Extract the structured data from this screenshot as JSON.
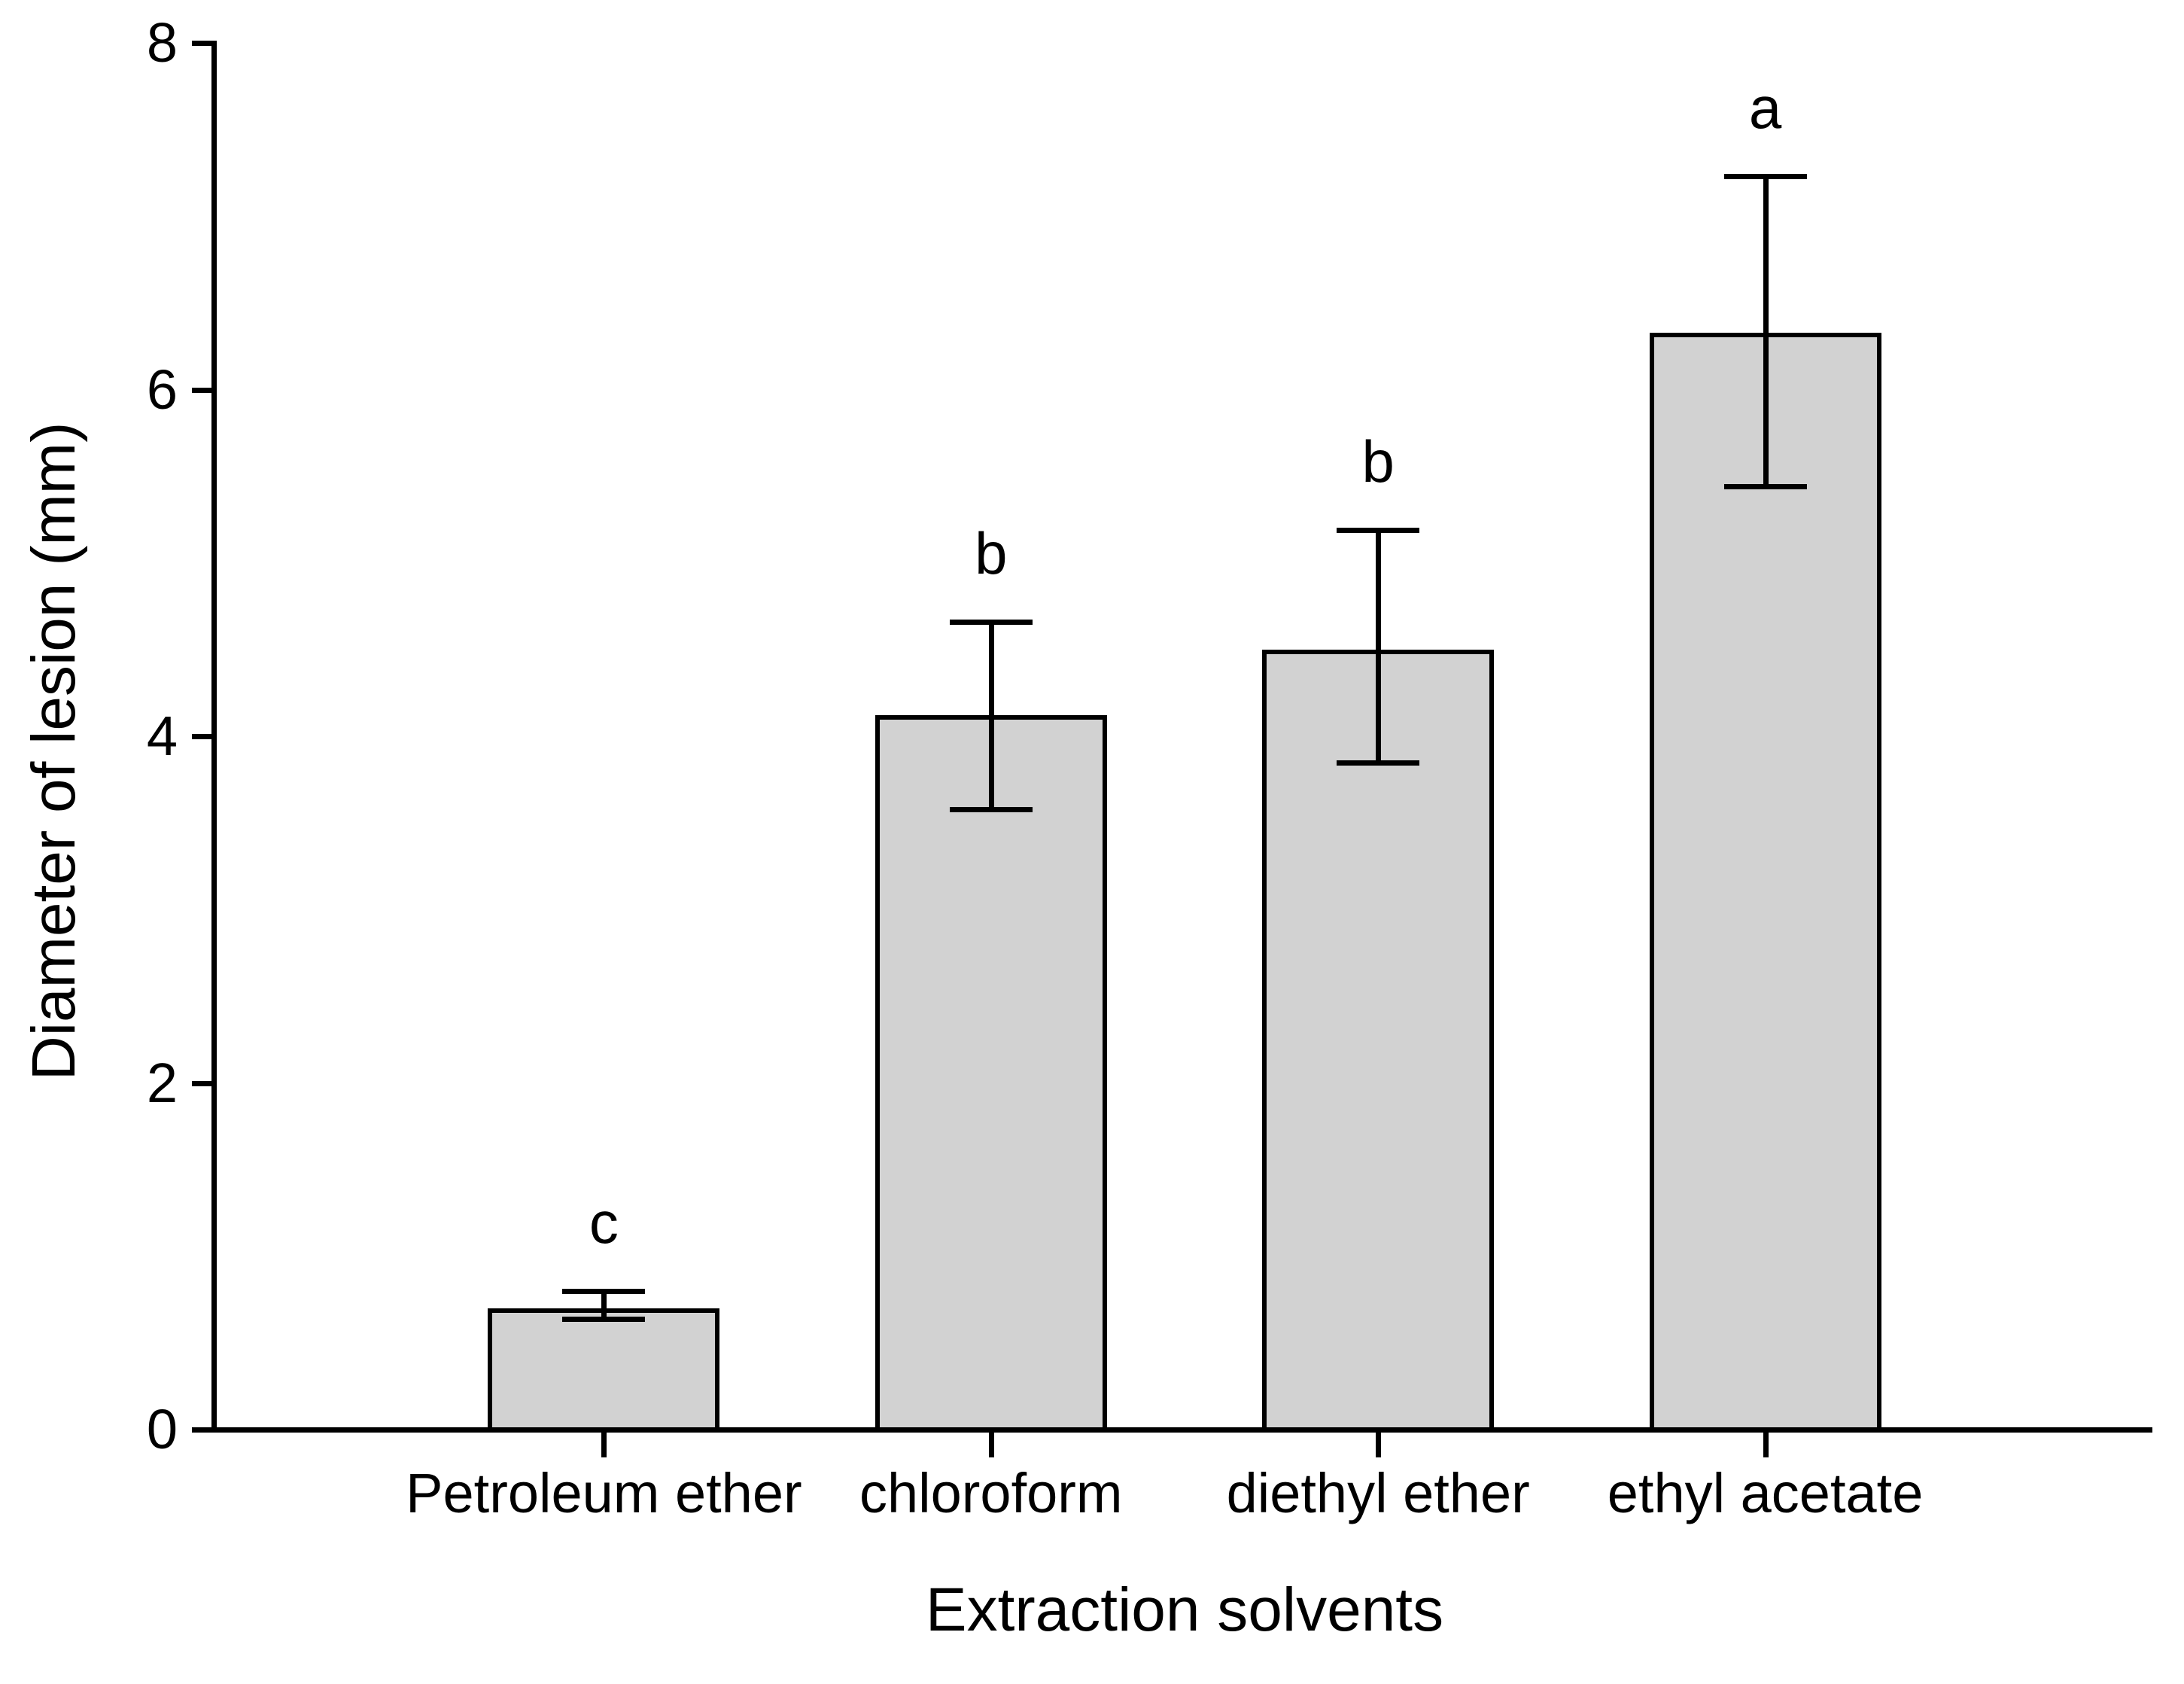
{
  "figure": {
    "background": "#ffffff",
    "text_color": "#000000"
  },
  "chart_data": {
    "type": "bar",
    "title": "",
    "xlabel": "Extraction solvents",
    "ylabel": "Diameter of lesion (mm)",
    "ylim": [
      0,
      8
    ],
    "yticks": [
      0,
      2,
      4,
      6,
      8
    ],
    "grid": false,
    "legend": null,
    "bar_fill": "#d2d2d2",
    "bar_edge": "#000000",
    "categories": [
      "Petroleum ether",
      "chloroform",
      "diethyl ether",
      "ethyl acetate"
    ],
    "values": [
      0.7,
      4.12,
      4.5,
      6.33
    ],
    "error_top": [
      0.8,
      4.66,
      5.19,
      7.23
    ],
    "error_bottom": [
      0.64,
      3.58,
      3.85,
      5.44
    ],
    "sig_letters": [
      "c",
      "b",
      "b",
      "a"
    ]
  }
}
